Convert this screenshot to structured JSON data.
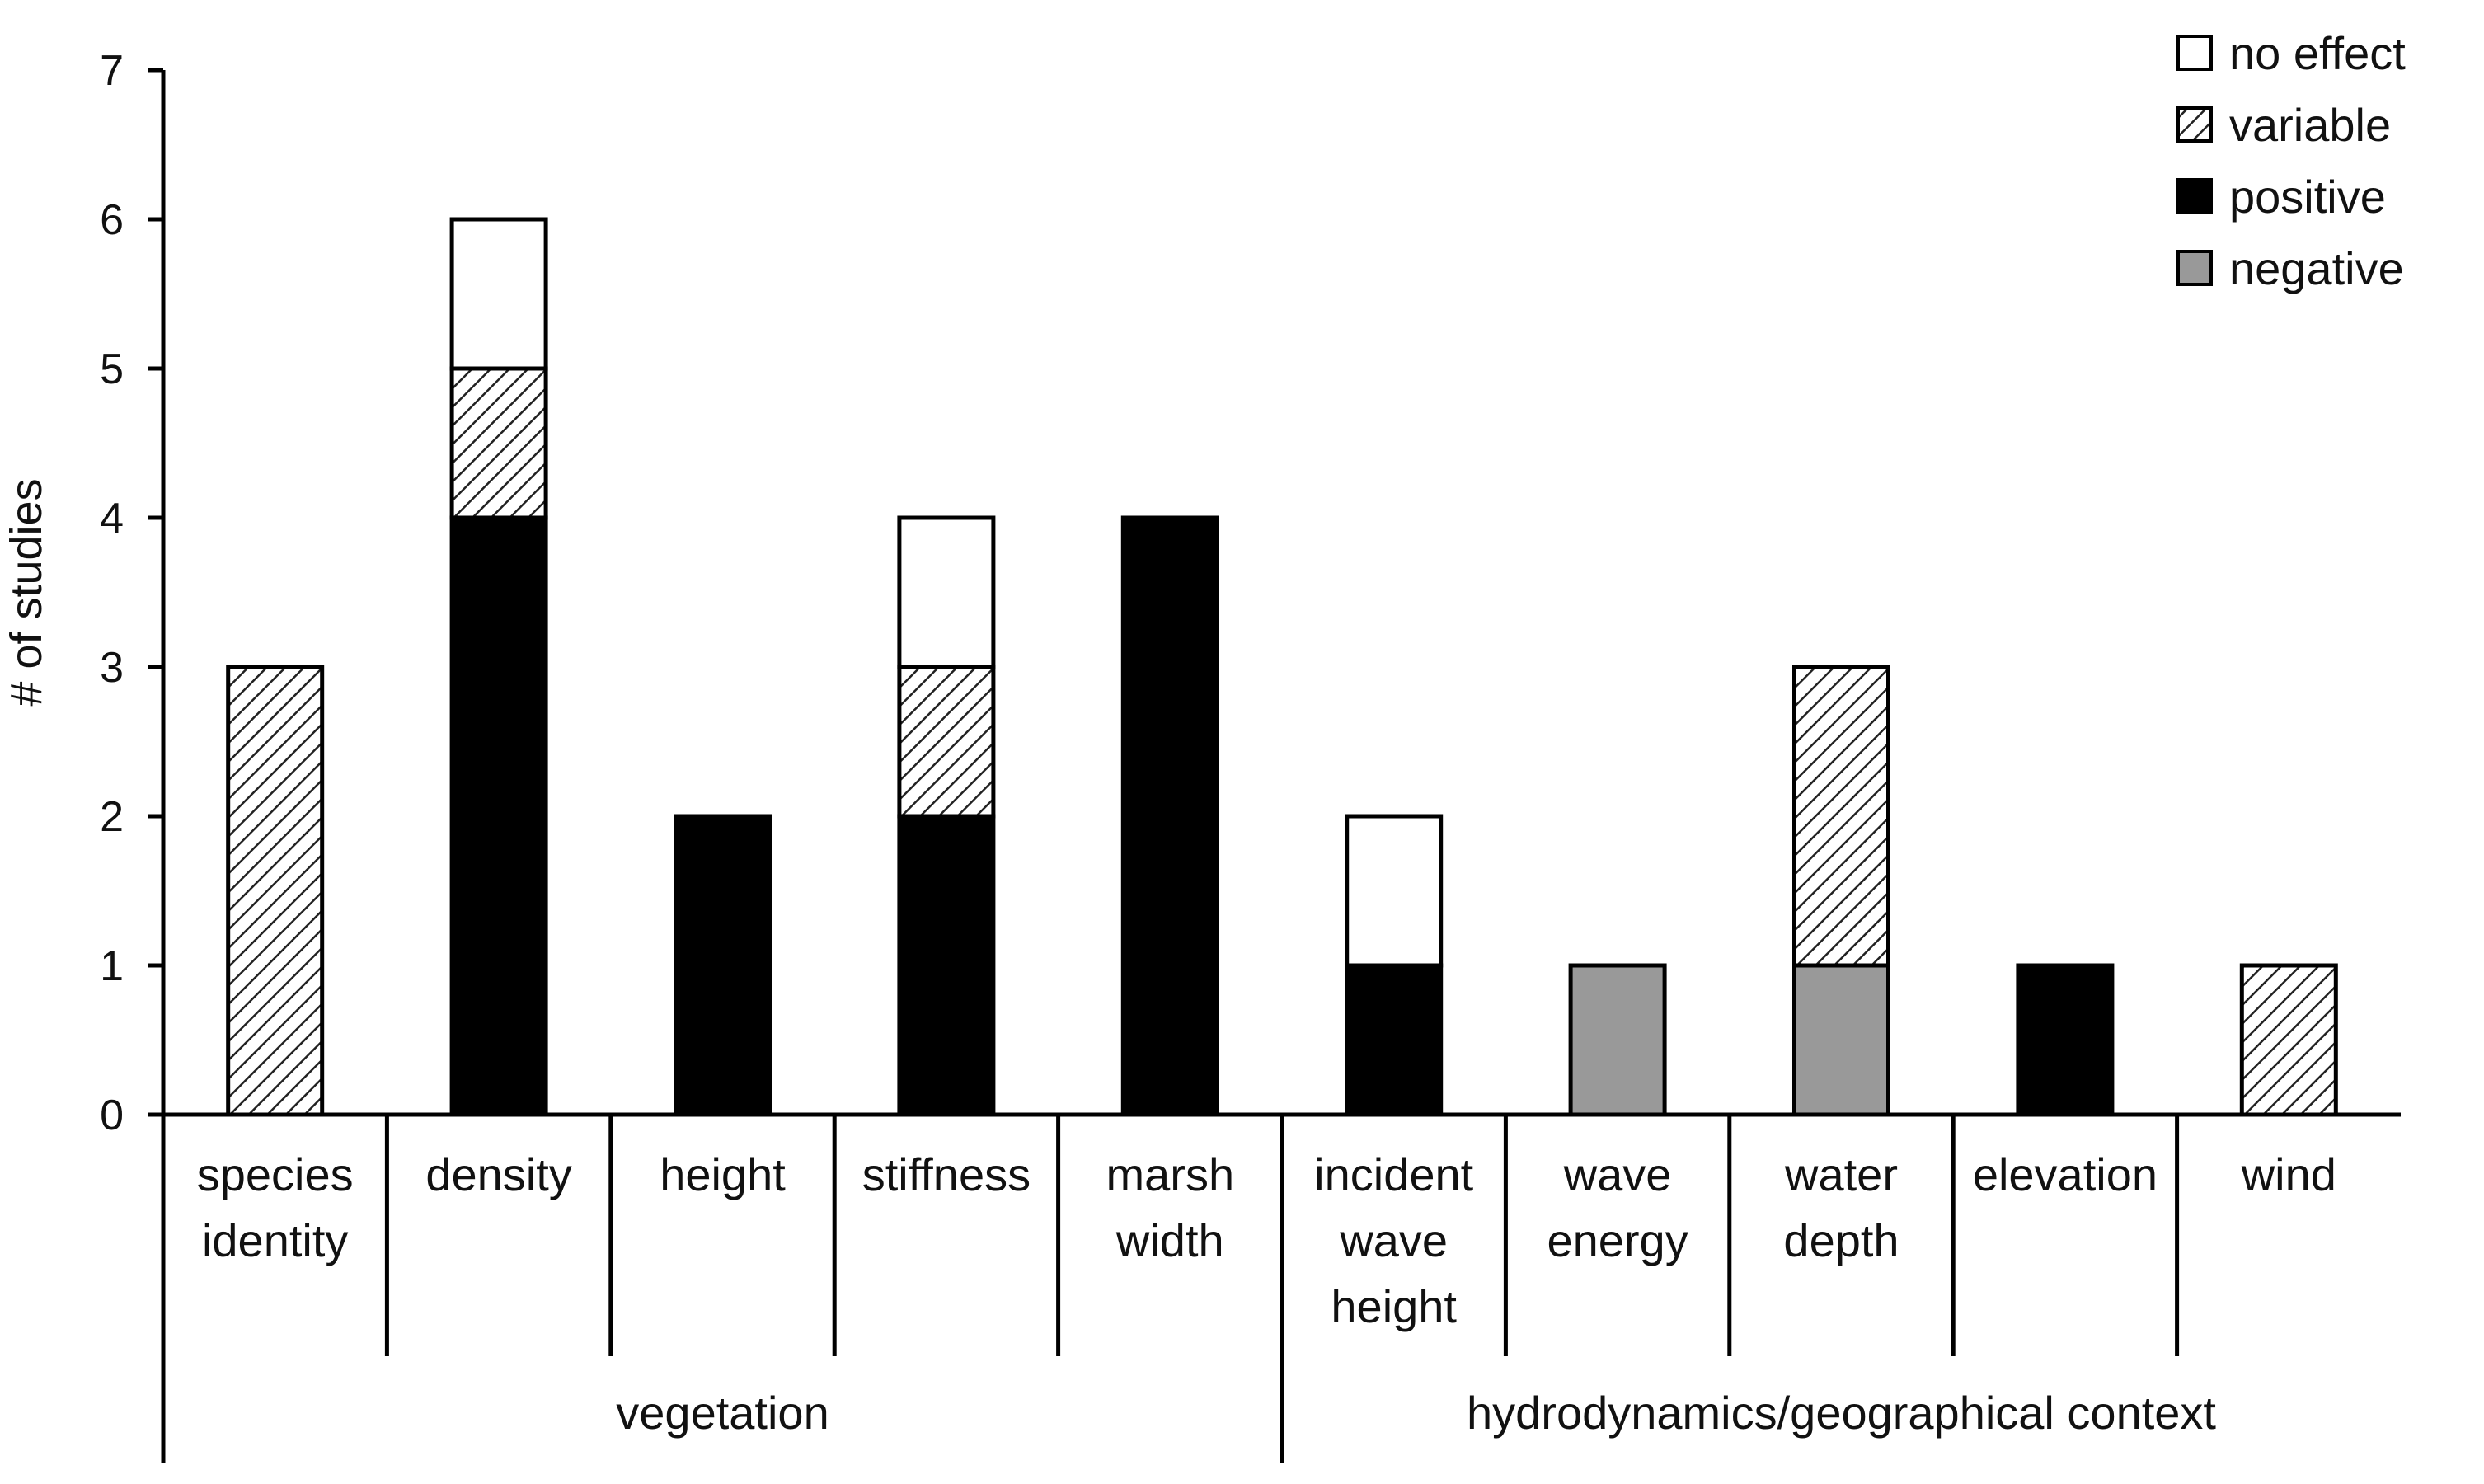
{
  "chart_data": {
    "type": "bar",
    "stacked": true,
    "title": "",
    "xlabel": "",
    "ylabel": "# of studies",
    "ylim": [
      0,
      7
    ],
    "yticks": [
      0,
      1,
      2,
      3,
      4,
      5,
      6,
      7
    ],
    "grid": false,
    "legend_position": "top-right",
    "categories": [
      {
        "lines": [
          "species",
          "identity"
        ]
      },
      {
        "lines": [
          "density"
        ]
      },
      {
        "lines": [
          "height"
        ]
      },
      {
        "lines": [
          "stiffness"
        ]
      },
      {
        "lines": [
          "marsh",
          "width"
        ]
      },
      {
        "lines": [
          "incident",
          "wave",
          "height"
        ]
      },
      {
        "lines": [
          "wave",
          "energy"
        ]
      },
      {
        "lines": [
          "water",
          "depth"
        ]
      },
      {
        "lines": [
          "elevation"
        ]
      },
      {
        "lines": [
          "wind"
        ]
      }
    ],
    "groups": [
      {
        "label": "vegetation",
        "category_count": 5
      },
      {
        "label": "hydrodynamics/geographical context",
        "category_count": 5
      }
    ],
    "series": [
      {
        "name": "negative",
        "fill": "#999999",
        "values": [
          0,
          0,
          0,
          0,
          0,
          0,
          1,
          1,
          0,
          0
        ]
      },
      {
        "name": "positive",
        "fill": "#000000",
        "values": [
          0,
          4,
          2,
          2,
          4,
          1,
          0,
          0,
          1,
          0
        ]
      },
      {
        "name": "variable",
        "fill": "hatch",
        "values": [
          3,
          1,
          0,
          1,
          0,
          0,
          0,
          2,
          0,
          1
        ]
      },
      {
        "name": "no effect",
        "fill": "#ffffff",
        "values": [
          0,
          1,
          0,
          1,
          0,
          1,
          0,
          0,
          0,
          0
        ]
      }
    ],
    "legend_order": [
      "no effect",
      "variable",
      "positive",
      "negative"
    ]
  }
}
